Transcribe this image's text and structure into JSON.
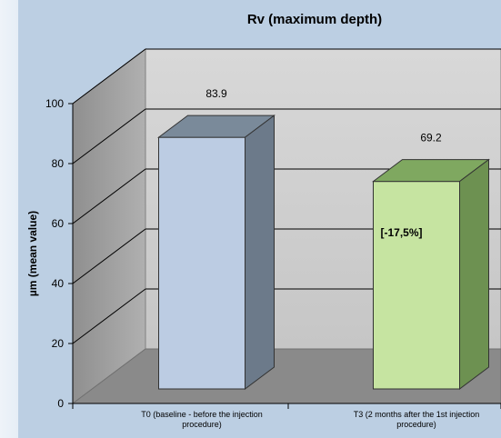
{
  "chart_data": {
    "type": "bar",
    "title": "Rv (maximum  depth)",
    "ylabel": "µm (mean value)",
    "xlabel": "",
    "ylim": [
      0,
      100
    ],
    "yticks": [
      0,
      20,
      40,
      60,
      80,
      100
    ],
    "grid": true,
    "categories": [
      [
        "T0 (baseline - before the injection",
        "procedure)"
      ],
      [
        "T3 (2 months after the 1st injection",
        "procedure)"
      ]
    ],
    "values": [
      83.9,
      69.2
    ],
    "value_labels": [
      "83.9",
      "69.2"
    ],
    "annotations": [
      {
        "category_index": 1,
        "text": "[-17,5%]"
      }
    ],
    "colors": {
      "panel": "#bccfe3",
      "back_wall": "#d2d2d2",
      "side_wall": "#a7a7a7",
      "floor": "#8a8a8a",
      "bar0": "#bccce3",
      "bar1": "#c6e4a1"
    }
  }
}
